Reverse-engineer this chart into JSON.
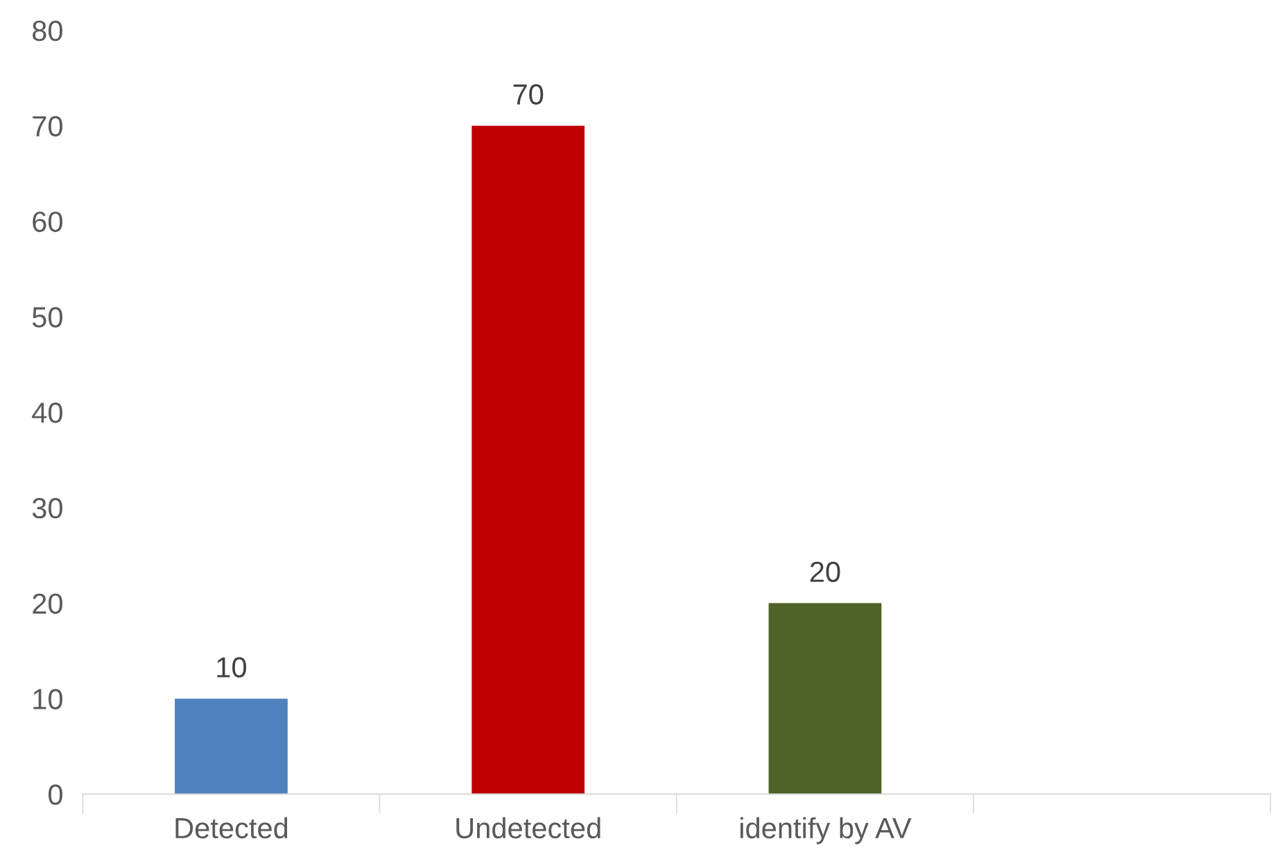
{
  "chart_data": {
    "type": "bar",
    "categories": [
      "Detected",
      "Undetected",
      "identify by AV",
      null
    ],
    "values": [
      10,
      70,
      20,
      null
    ],
    "colors": [
      "#4f81bd",
      "#c00000",
      "#4f6228",
      null
    ],
    "ylim": [
      0,
      80
    ],
    "yticks": [
      0,
      10,
      20,
      30,
      40,
      50,
      60,
      70,
      80
    ],
    "data_labels": true,
    "grid": false,
    "legend": false
  }
}
